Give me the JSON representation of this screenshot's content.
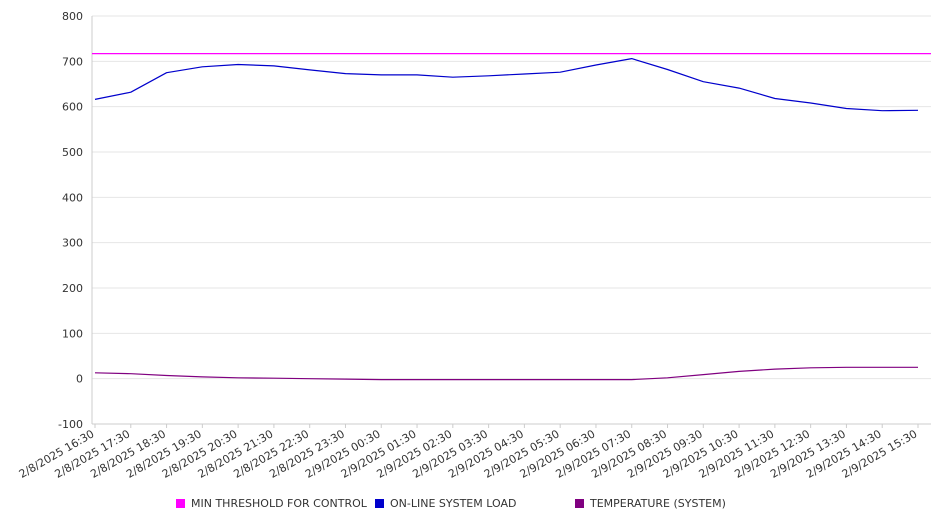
{
  "chart_data": {
    "type": "line",
    "title": "",
    "xlabel": "",
    "ylabel": "",
    "ylim": [
      -100,
      800
    ],
    "yticks": [
      800,
      700,
      600,
      500,
      400,
      300,
      200,
      100,
      0,
      -100
    ],
    "grid": true,
    "legend_position": "bottom",
    "x_tick_labels": [
      "2/8/2025 16:30",
      "2/8/2025 17:30",
      "2/8/2025 18:30",
      "2/8/2025 19:30",
      "2/8/2025 20:30",
      "2/8/2025 21:30",
      "2/8/2025 22:30",
      "2/8/2025 23:30",
      "2/9/2025 00:30",
      "2/9/2025 01:30",
      "2/9/2025 02:30",
      "2/9/2025 03:30",
      "2/9/2025 04:30",
      "2/9/2025 05:30",
      "2/9/2025 06:30",
      "2/9/2025 07:30",
      "2/9/2025 08:30",
      "2/9/2025 09:30",
      "2/9/2025 10:30",
      "2/9/2025 11:30",
      "2/9/2025 12:30",
      "2/9/2025 13:30",
      "2/9/2025 14:30",
      "2/9/2025 15:30"
    ],
    "x": [
      "2/8/2025 16:30",
      "2/8/2025 17:30",
      "2/8/2025 18:30",
      "2/8/2025 19:30",
      "2/8/2025 20:30",
      "2/8/2025 21:30",
      "2/8/2025 22:30",
      "2/8/2025 23:30",
      "2/9/2025 00:30",
      "2/9/2025 01:30",
      "2/9/2025 02:30",
      "2/9/2025 03:30",
      "2/9/2025 04:30",
      "2/9/2025 05:30",
      "2/9/2025 06:30",
      "2/9/2025 07:30",
      "2/9/2025 08:30",
      "2/9/2025 09:30",
      "2/9/2025 10:30",
      "2/9/2025 11:30",
      "2/9/2025 12:30",
      "2/9/2025 13:30",
      "2/9/2025 14:30",
      "2/9/2025 15:30"
    ],
    "series": [
      {
        "name": "MIN THRESHOLD FOR CONTROL",
        "color": "#ff00ff",
        "values": [
          717,
          717,
          717,
          717,
          717,
          717,
          717,
          717,
          717,
          717,
          717,
          717,
          717,
          717,
          717,
          717,
          717,
          717,
          717,
          717,
          717,
          717,
          717,
          717
        ]
      },
      {
        "name": "ON-LINE SYSTEM LOAD",
        "color": "#0000cc",
        "values": [
          616,
          632,
          675,
          688,
          693,
          690,
          681,
          673,
          670,
          670,
          665,
          668,
          672,
          676,
          692,
          706,
          682,
          655,
          641,
          618,
          608,
          596,
          591,
          592
        ]
      },
      {
        "name": "TEMPERATURE (SYSTEM)",
        "color": "#800080",
        "values": [
          13,
          11,
          7,
          4,
          2,
          1,
          0,
          -1,
          -2,
          -2,
          -2,
          -2,
          -2,
          -2,
          -2,
          -2,
          2,
          9,
          16,
          21,
          24,
          25,
          25,
          25
        ]
      }
    ]
  }
}
